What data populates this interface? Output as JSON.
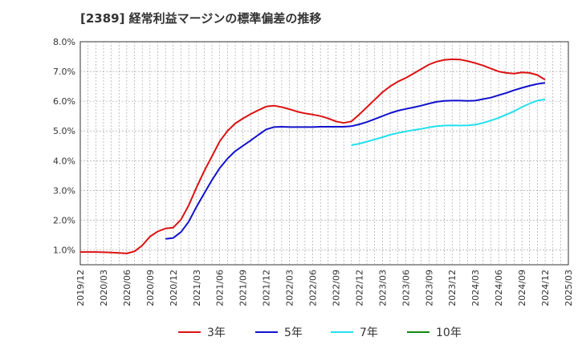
{
  "chart_data": {
    "type": "line",
    "title": "[2389]  経常利益マージンの標準偏差の推移",
    "xlabel": "",
    "ylabel": "",
    "ylim": [
      0.5,
      8.0
    ],
    "xlim": [
      "2019/12",
      "2025/03"
    ],
    "grid": true,
    "legend_position": "bottom",
    "y_ticks": [
      "1.0%",
      "2.0%",
      "3.0%",
      "4.0%",
      "5.0%",
      "6.0%",
      "7.0%",
      "8.0%"
    ],
    "x_ticks": [
      "2019/12",
      "2020/03",
      "2020/06",
      "2020/09",
      "2020/12",
      "2021/03",
      "2021/06",
      "2021/09",
      "2021/12",
      "2022/03",
      "2022/06",
      "2022/09",
      "2022/12",
      "2023/03",
      "2023/06",
      "2023/09",
      "2023/12",
      "2024/03",
      "2024/06",
      "2024/09",
      "2024/12",
      "2025/03"
    ],
    "series": [
      {
        "name": "3年",
        "color": "#dd1111",
        "x": [
          "2019/12",
          "2020/01",
          "2020/02",
          "2020/03",
          "2020/04",
          "2020/05",
          "2020/06",
          "2020/07",
          "2020/08",
          "2020/09",
          "2020/10",
          "2020/11",
          "2020/12",
          "2021/01",
          "2021/02",
          "2021/03",
          "2021/04",
          "2021/05",
          "2021/06",
          "2021/07",
          "2021/08",
          "2021/09",
          "2021/10",
          "2021/11",
          "2021/12",
          "2022/01",
          "2022/02",
          "2022/03",
          "2022/04",
          "2022/05",
          "2022/06",
          "2022/07",
          "2022/08",
          "2022/09",
          "2022/10",
          "2022/11",
          "2022/12",
          "2023/01",
          "2023/02",
          "2023/03",
          "2023/04",
          "2023/05",
          "2023/06",
          "2023/07",
          "2023/08",
          "2023/09",
          "2023/10",
          "2023/11",
          "2023/12",
          "2024/01",
          "2024/02",
          "2024/03",
          "2024/04",
          "2024/05",
          "2024/06",
          "2024/07",
          "2024/08",
          "2024/09",
          "2024/10",
          "2024/11",
          "2024/12"
        ],
        "values": [
          0.93,
          0.93,
          0.93,
          0.92,
          0.91,
          0.9,
          0.88,
          0.95,
          1.15,
          1.45,
          1.62,
          1.72,
          1.75,
          2.02,
          2.5,
          3.1,
          3.65,
          4.15,
          4.65,
          5.0,
          5.25,
          5.42,
          5.57,
          5.7,
          5.82,
          5.85,
          5.8,
          5.73,
          5.65,
          5.59,
          5.55,
          5.5,
          5.42,
          5.32,
          5.27,
          5.32,
          5.55,
          5.8,
          6.05,
          6.3,
          6.5,
          6.66,
          6.78,
          6.93,
          7.08,
          7.23,
          7.33,
          7.39,
          7.41,
          7.4,
          7.35,
          7.28,
          7.2,
          7.1,
          7.0,
          6.95,
          6.93,
          6.97,
          6.95,
          6.88,
          6.72
        ]
      },
      {
        "name": "5年",
        "color": "#1111cc",
        "x": [
          "2020/11",
          "2020/12",
          "2021/01",
          "2021/02",
          "2021/03",
          "2021/04",
          "2021/05",
          "2021/06",
          "2021/07",
          "2021/08",
          "2021/09",
          "2021/10",
          "2021/11",
          "2021/12",
          "2022/01",
          "2022/02",
          "2022/03",
          "2022/04",
          "2022/05",
          "2022/06",
          "2022/07",
          "2022/08",
          "2022/09",
          "2022/10",
          "2022/11",
          "2022/12",
          "2023/01",
          "2023/02",
          "2023/03",
          "2023/04",
          "2023/05",
          "2023/06",
          "2023/07",
          "2023/08",
          "2023/09",
          "2023/10",
          "2023/11",
          "2023/12",
          "2024/01",
          "2024/02",
          "2024/03",
          "2024/04",
          "2024/05",
          "2024/06",
          "2024/07",
          "2024/08",
          "2024/09",
          "2024/10",
          "2024/11",
          "2024/12"
        ],
        "values": [
          1.37,
          1.4,
          1.6,
          1.95,
          2.45,
          2.9,
          3.35,
          3.75,
          4.07,
          4.32,
          4.5,
          4.68,
          4.87,
          5.05,
          5.13,
          5.14,
          5.13,
          5.13,
          5.13,
          5.13,
          5.14,
          5.14,
          5.14,
          5.14,
          5.16,
          5.22,
          5.3,
          5.4,
          5.5,
          5.6,
          5.68,
          5.74,
          5.79,
          5.85,
          5.92,
          5.98,
          6.01,
          6.02,
          6.02,
          6.01,
          6.02,
          6.07,
          6.12,
          6.2,
          6.28,
          6.37,
          6.45,
          6.52,
          6.58,
          6.62
        ]
      },
      {
        "name": "7年",
        "color": "#22e0ee",
        "x": [
          "2022/11",
          "2022/12",
          "2023/01",
          "2023/02",
          "2023/03",
          "2023/04",
          "2023/05",
          "2023/06",
          "2023/07",
          "2023/08",
          "2023/09",
          "2023/10",
          "2023/11",
          "2023/12",
          "2024/01",
          "2024/02",
          "2024/03",
          "2024/04",
          "2024/05",
          "2024/06",
          "2024/07",
          "2024/08",
          "2024/09",
          "2024/10",
          "2024/11",
          "2024/12"
        ],
        "values": [
          4.52,
          4.57,
          4.64,
          4.71,
          4.79,
          4.87,
          4.93,
          4.98,
          5.03,
          5.07,
          5.12,
          5.16,
          5.18,
          5.19,
          5.18,
          5.19,
          5.21,
          5.27,
          5.35,
          5.44,
          5.55,
          5.66,
          5.8,
          5.92,
          6.02,
          6.06
        ]
      },
      {
        "name": "10年",
        "color": "#118811",
        "x": [],
        "values": []
      }
    ]
  }
}
